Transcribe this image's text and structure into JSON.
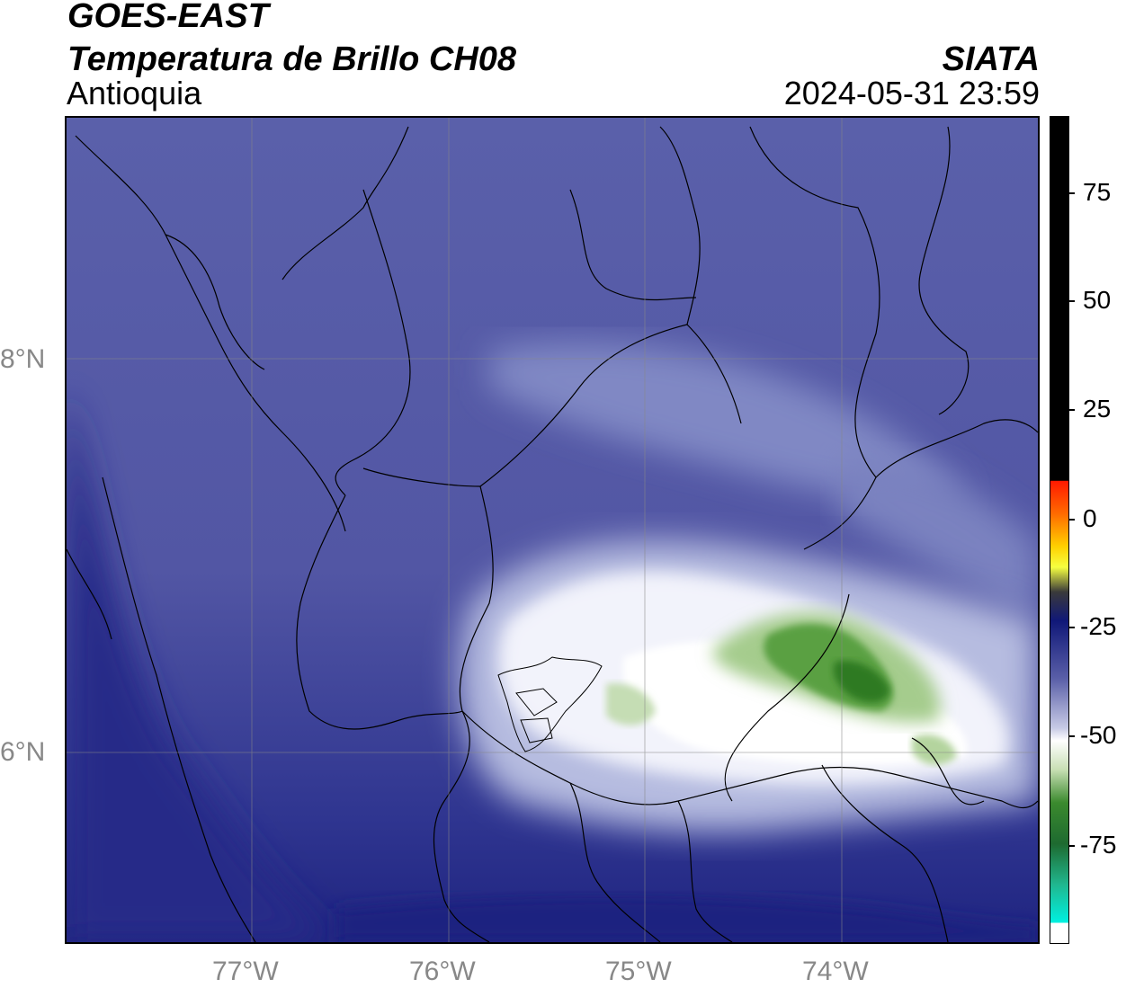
{
  "header": {
    "title_line1": "GOES-EAST",
    "title_line2": "Temperatura de Brillo CH08",
    "region": "Antioquia",
    "org": "SIATA",
    "datetime": "2024-05-31 23:59"
  },
  "map": {
    "lon_range": [
      -77.95,
      -73.05
    ],
    "lat_range": [
      5.1,
      9.3
    ],
    "lon_ticks": [
      "77°W",
      "76°W",
      "75°W",
      "74°W"
    ],
    "lat_ticks": [
      "8°N",
      "6°N"
    ],
    "gridline_color": "#888888",
    "background_color": "#5a5fa8"
  },
  "colorbar": {
    "range": [
      -95,
      92
    ],
    "ticks": [
      "75",
      "50",
      "25",
      "0",
      "-25",
      "-50",
      "-75"
    ],
    "colors": {
      "warm": "#000000",
      "red": "#ff2000",
      "yellow": "#ffff00",
      "navy": "#141a78",
      "blue": "#5a5fa8",
      "white": "#ffffff",
      "green": "#3b8a2e",
      "cyan": "#00e8d8"
    }
  }
}
